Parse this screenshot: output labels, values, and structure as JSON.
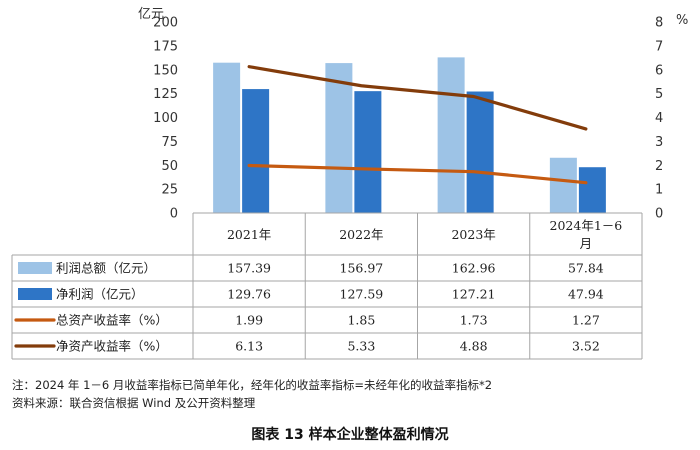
{
  "chart_data": {
    "type": "bar",
    "left_unit": "亿元",
    "right_unit": "%",
    "left_ticks": [
      "0",
      "25",
      "50",
      "75",
      "100",
      "125",
      "150",
      "175",
      "200"
    ],
    "right_ticks": [
      "0",
      "1",
      "2",
      "3",
      "4",
      "5",
      "6",
      "7",
      "8"
    ],
    "ylim": [
      0,
      200
    ],
    "y2lim": [
      0,
      8
    ],
    "categories": [
      "2021年",
      "2022年",
      "2023年",
      "2024年1－6月"
    ],
    "series": [
      {
        "name": "利润总额（亿元）",
        "kind": "bar",
        "axis": "left",
        "color": "#9dc3e6",
        "values": [
          157.39,
          156.97,
          162.96,
          57.84
        ],
        "labels": [
          "157.39",
          "156.97",
          "162.96",
          "57.84"
        ]
      },
      {
        "name": "净利润（亿元）",
        "kind": "bar",
        "axis": "left",
        "color": "#2e75c6",
        "values": [
          129.76,
          127.59,
          127.21,
          47.94
        ],
        "labels": [
          "129.76",
          "127.59",
          "127.21",
          "47.94"
        ]
      },
      {
        "name": "总资产收益率（%）",
        "kind": "line",
        "axis": "right",
        "color": "#c55a11",
        "values": [
          1.99,
          1.85,
          1.73,
          1.27
        ],
        "labels": [
          "1.99",
          "1.85",
          "1.73",
          "1.27"
        ]
      },
      {
        "name": "净资产收益率（%）",
        "kind": "line",
        "axis": "right",
        "color": "#833c0b",
        "values": [
          6.13,
          5.33,
          4.88,
          3.52
        ],
        "labels": [
          "6.13",
          "5.33",
          "4.88",
          "3.52"
        ]
      }
    ]
  },
  "note": {
    "line1": "注：2024 年 1－6 月收益率指标已简单年化，经年化的收益率指标=未经年化的收益率指标*2",
    "line2": "资料来源：联合资信根据 Wind 及公开资料整理"
  },
  "caption": "图表 13    样本企业整体盈利情况"
}
